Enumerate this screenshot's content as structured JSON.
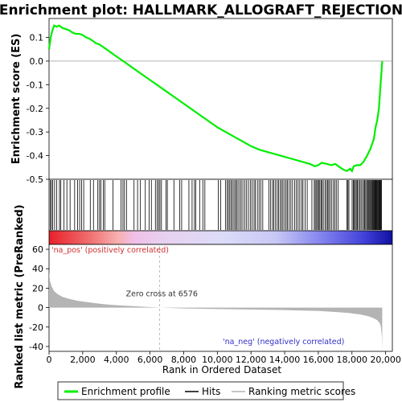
{
  "title": "Enrichment plot: HALLMARK_ALLOGRAFT_REJECTION",
  "colors": {
    "enrichment_line": "#00ee00",
    "hits": "#000000",
    "ranking_fill": "#b4b4b4",
    "pos_label": "#d03030",
    "neg_label": "#3030c8",
    "zero_cross_line": "#aaaaaa"
  },
  "chart_data": [
    {
      "type": "line",
      "name": "enrichment-profile",
      "ylabel": "Enrichment score (ES)",
      "xlim": [
        0,
        20400
      ],
      "ylim": [
        -0.5,
        0.18
      ],
      "yticks": [
        0.1,
        0.0,
        -0.1,
        -0.2,
        -0.3,
        -0.4,
        -0.5
      ],
      "ytick_labels": [
        "0.1",
        "0.0",
        "-0.1",
        "-0.2",
        "-0.3",
        "-0.4",
        "-0.5"
      ],
      "x": [
        0,
        100,
        200,
        300,
        450,
        600,
        800,
        1000,
        1200,
        1400,
        1600,
        1800,
        2000,
        2200,
        2400,
        2600,
        2800,
        3000,
        3200,
        3400,
        3600,
        3800,
        4000,
        4500,
        5000,
        5500,
        6000,
        6500,
        7000,
        7500,
        8000,
        8500,
        9000,
        9500,
        10000,
        10500,
        11000,
        11500,
        12000,
        12500,
        13000,
        13500,
        14000,
        14500,
        15000,
        15500,
        15800,
        16000,
        16200,
        16500,
        16800,
        17000,
        17300,
        17500,
        17700,
        17900,
        18000,
        18100,
        18300,
        18500,
        18700,
        18900,
        19100,
        19300,
        19400,
        19500,
        19600,
        19650,
        19700,
        19750,
        19800
      ],
      "y": [
        0.05,
        0.1,
        0.13,
        0.15,
        0.145,
        0.15,
        0.14,
        0.135,
        0.13,
        0.12,
        0.115,
        0.115,
        0.11,
        0.1,
        0.095,
        0.085,
        0.075,
        0.07,
        0.06,
        0.05,
        0.04,
        0.03,
        0.02,
        -0.005,
        -0.03,
        -0.055,
        -0.08,
        -0.105,
        -0.13,
        -0.155,
        -0.18,
        -0.205,
        -0.23,
        -0.255,
        -0.28,
        -0.3,
        -0.32,
        -0.34,
        -0.36,
        -0.375,
        -0.385,
        -0.395,
        -0.405,
        -0.415,
        -0.425,
        -0.435,
        -0.445,
        -0.44,
        -0.43,
        -0.435,
        -0.44,
        -0.435,
        -0.45,
        -0.46,
        -0.465,
        -0.455,
        -0.465,
        -0.445,
        -0.44,
        -0.44,
        -0.425,
        -0.4,
        -0.37,
        -0.33,
        -0.28,
        -0.25,
        -0.2,
        -0.15,
        -0.1,
        -0.05,
        0.0
      ]
    },
    {
      "type": "scatter",
      "name": "hits",
      "note": "gene set member positions",
      "x": [
        80,
        140,
        210,
        330,
        460,
        620,
        700,
        890,
        1060,
        1250,
        1520,
        1700,
        1820,
        1930,
        2060,
        2450,
        2640,
        2900,
        3000,
        3080,
        3220,
        3310,
        3800,
        4280,
        4390,
        4480,
        4600,
        5050,
        5260,
        5430,
        5720,
        5950,
        6080,
        6320,
        6420,
        6510,
        6590,
        6680,
        6950,
        7030,
        7420,
        7770,
        7880,
        8310,
        8500,
        8640,
        8720,
        8950,
        9140,
        9260,
        10060,
        10200,
        10480,
        10580,
        10660,
        10740,
        10820,
        10900,
        10990,
        11080,
        11140,
        11230,
        11330,
        11420,
        11520,
        11640,
        11740,
        11850,
        11960,
        12060,
        12180,
        12260,
        12380,
        12480,
        12580,
        12700,
        13060,
        13170,
        13280,
        13360,
        13460,
        13560,
        13640,
        13740,
        13820,
        13900,
        14000,
        14090,
        14170,
        14270,
        14370,
        14470,
        14590,
        14700,
        14800,
        14900,
        15010,
        15090,
        15220,
        15340,
        15620,
        15760,
        15820,
        15900,
        15960,
        16020,
        16090,
        16160,
        16220,
        16300,
        16400,
        16480,
        16560,
        16620,
        16700,
        16800,
        16900,
        16980,
        17070,
        17170,
        17700,
        17760,
        17820,
        18010,
        18080,
        18140,
        18200,
        18260,
        18320,
        18390,
        18460,
        18540,
        18620,
        18700,
        18760,
        18820,
        18880,
        18940,
        19000,
        19050,
        19100,
        19150,
        19200,
        19240,
        19280,
        19320,
        19360,
        19400,
        19440,
        19480,
        19520,
        19560,
        19600,
        19640,
        19680,
        19720,
        19760
      ]
    },
    {
      "type": "area",
      "name": "ranking-metric",
      "ylabel": "Ranked list metric (PreRanked)",
      "xlabel": "Rank in Ordered Dataset",
      "xlim": [
        0,
        20400
      ],
      "ylim": [
        -45,
        65
      ],
      "yticks": [
        60,
        40,
        20,
        0,
        -20,
        -40
      ],
      "ytick_labels": [
        "60",
        "40",
        "20",
        "0",
        "-20",
        "-40"
      ],
      "xticks": [
        0,
        2000,
        4000,
        6000,
        8000,
        10000,
        12000,
        14000,
        16000,
        18000,
        20000
      ],
      "xtick_labels": [
        "0",
        "2,000",
        "4,000",
        "6,000",
        "8,000",
        "10,000",
        "12,000",
        "14,000",
        "16,000",
        "18,000",
        "20,000"
      ],
      "x": [
        0,
        50,
        150,
        300,
        500,
        800,
        1200,
        1700,
        2300,
        3000,
        4000,
        5000,
        6576,
        8000,
        10000,
        12000,
        14000,
        15000,
        16000,
        17000,
        17800,
        18500,
        19000,
        19300,
        19500,
        19650,
        19720,
        19780,
        19800
      ],
      "y": [
        38,
        28,
        22,
        17,
        14,
        11,
        9,
        7,
        5.5,
        4,
        2.5,
        1.5,
        0,
        -0.8,
        -1.5,
        -2,
        -2.5,
        -3,
        -3.5,
        -4.5,
        -5.5,
        -7,
        -9,
        -11,
        -13,
        -16,
        -20,
        -30,
        -45
      ],
      "zero_cross_label": "Zero cross at 6576",
      "zero_cross": 6576,
      "pos_label": "'na_pos' (positively correlated)",
      "neg_label": "'na_neg' (negatively correlated)"
    }
  ],
  "legend": {
    "items": [
      {
        "label": "Enrichment profile",
        "swatch": "line-green"
      },
      {
        "label": "Hits",
        "swatch": "line-black"
      },
      {
        "label": "Ranking metric scores",
        "swatch": "line-gray"
      }
    ]
  }
}
